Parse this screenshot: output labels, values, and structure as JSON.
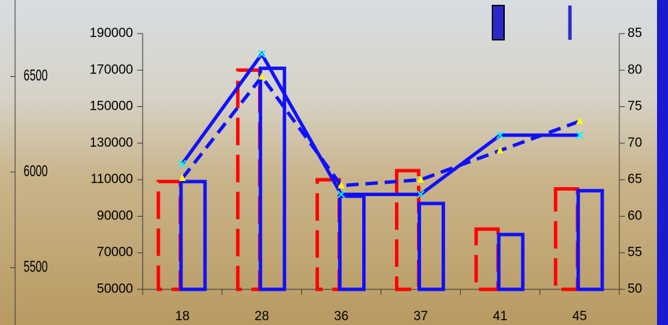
{
  "chart_data": {
    "type": "bar",
    "categories": [
      "18",
      "28",
      "36",
      "37",
      "41",
      "45"
    ],
    "ylim": [
      50000,
      190000
    ],
    "yticks": [
      50000,
      70000,
      90000,
      110000,
      130000,
      150000,
      170000,
      190000
    ],
    "y2lim": [
      50,
      85
    ],
    "y2ticks": [
      50,
      55,
      60,
      65,
      70,
      75,
      80,
      85
    ],
    "y3lim": [
      5200,
      6900
    ],
    "y3ticks": [
      5500,
      6000,
      6500
    ],
    "series": [
      {
        "type": "bar",
        "color": "#ff0000",
        "style": "dashed",
        "values": [
          109000,
          170000,
          110000,
          115000,
          83000,
          105000
        ]
      },
      {
        "type": "bar",
        "color": "#1010ff",
        "style": "solid",
        "values": [
          109000,
          171000,
          101000,
          97000,
          80000,
          104000
        ]
      },
      {
        "type": "line",
        "axis": "y2",
        "color": "#1010ff",
        "style": "solid",
        "marker": "x",
        "marker_color": "#00ffff",
        "values": [
          67.2,
          82.2,
          63,
          63,
          71.1,
          71.1
        ]
      },
      {
        "type": "line",
        "axis": "y2",
        "color": "#1010ff",
        "style": "dashed",
        "marker": "triangle",
        "marker_color": "#ffff00",
        "values": [
          65.2,
          79.1,
          64.2,
          65,
          69,
          73
        ]
      }
    ]
  }
}
